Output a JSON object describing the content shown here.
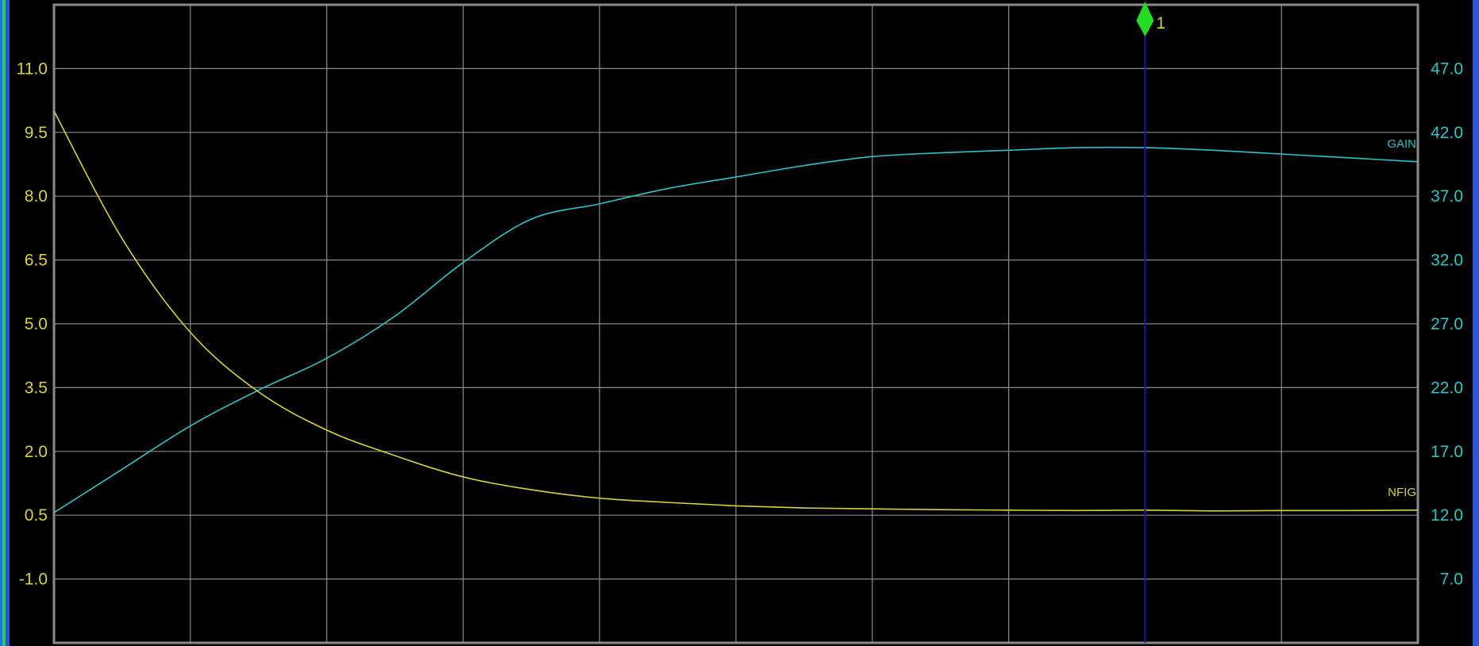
{
  "chart_data": {
    "type": "line",
    "left_axis": {
      "ticks": [
        "11.0",
        "9.5",
        "8.0",
        "6.5",
        "5.0",
        "3.5",
        "2.0",
        "0.5",
        "-1.0"
      ],
      "range": [
        -2.5,
        12.5
      ],
      "color": "#d7d23a"
    },
    "right_axis": {
      "ticks": [
        "47.0",
        "42.0",
        "37.0",
        "32.0",
        "27.0",
        "22.0",
        "17.0",
        "12.0",
        "7.0"
      ],
      "range": [
        2.0,
        52.0
      ],
      "color": "#2fc3c8"
    },
    "x_divisions": 10,
    "grid": true,
    "background": "#000000",
    "grid_color": "#8a8a8a",
    "series": [
      {
        "name": "GAIN",
        "axis": "right",
        "color": "#2fc3c8",
        "x": [
          0,
          0.5,
          1,
          1.5,
          2,
          2.5,
          3,
          3.5,
          4,
          4.5,
          5,
          5.5,
          6,
          6.5,
          7,
          7.5,
          8,
          8.5,
          9,
          9.5,
          10
        ],
        "values": [
          12.2,
          15.6,
          19.0,
          21.8,
          24.3,
          27.6,
          31.8,
          35.2,
          36.4,
          37.6,
          38.5,
          39.4,
          40.1,
          40.4,
          40.6,
          40.8,
          40.8,
          40.6,
          40.3,
          40.0,
          39.7
        ]
      },
      {
        "name": "NFIG",
        "axis": "left",
        "color": "#d7d23a",
        "x": [
          0,
          0.5,
          1,
          1.5,
          2,
          2.5,
          3,
          3.5,
          4,
          4.5,
          5,
          5.5,
          6,
          6.5,
          7,
          7.5,
          8,
          8.5,
          9,
          9.5,
          10
        ],
        "values": [
          10.0,
          7.0,
          4.8,
          3.4,
          2.5,
          1.9,
          1.4,
          1.1,
          0.9,
          0.8,
          0.72,
          0.67,
          0.65,
          0.63,
          0.62,
          0.61,
          0.62,
          0.6,
          0.61,
          0.61,
          0.62
        ]
      }
    ],
    "marker": {
      "label": "1",
      "x": 8.0,
      "color": "#22dd22",
      "line_color": "#1a1aaa"
    }
  }
}
